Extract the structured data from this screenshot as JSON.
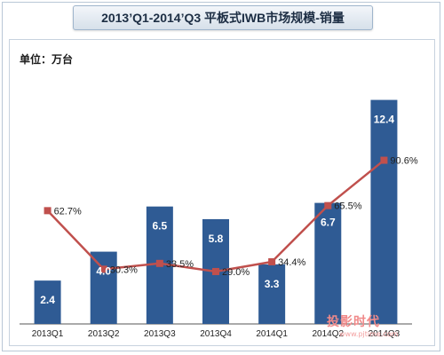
{
  "chart_data": {
    "type": "bar",
    "title": "2013’Q1-2014’Q3 平板式IWB市场规模-销量",
    "unit_label": "单位：万台",
    "categories": [
      "2013Q1",
      "2013Q2",
      "2013Q3",
      "2013Q4",
      "2014Q1",
      "2014Q2",
      "2014Q3"
    ],
    "series": [
      {
        "values": [
          2.4,
          4.0,
          6.5,
          5.8,
          3.3,
          6.7,
          12.4
        ],
        "labels": [
          "2.4",
          "4.0",
          "6.5",
          "5.8",
          "3.3",
          "6.7",
          "12.4"
        ],
        "color": "#2f5b94"
      },
      {
        "type": "line",
        "values": [
          62.7,
          30.3,
          33.5,
          29.0,
          34.4,
          65.5,
          90.6
        ],
        "labels": [
          "62.7%",
          "30.3%",
          "33.5%",
          "29.0%",
          "34.4%",
          "65.5%",
          "90.6%"
        ],
        "color": "#c0504d"
      }
    ],
    "bar_ylim": [
      0,
      14
    ],
    "line_ylim": [
      0,
      140
    ],
    "grid": false,
    "legend": "none"
  },
  "watermark": {
    "main": "投影时代",
    "sub": "www.pjtime.com"
  }
}
